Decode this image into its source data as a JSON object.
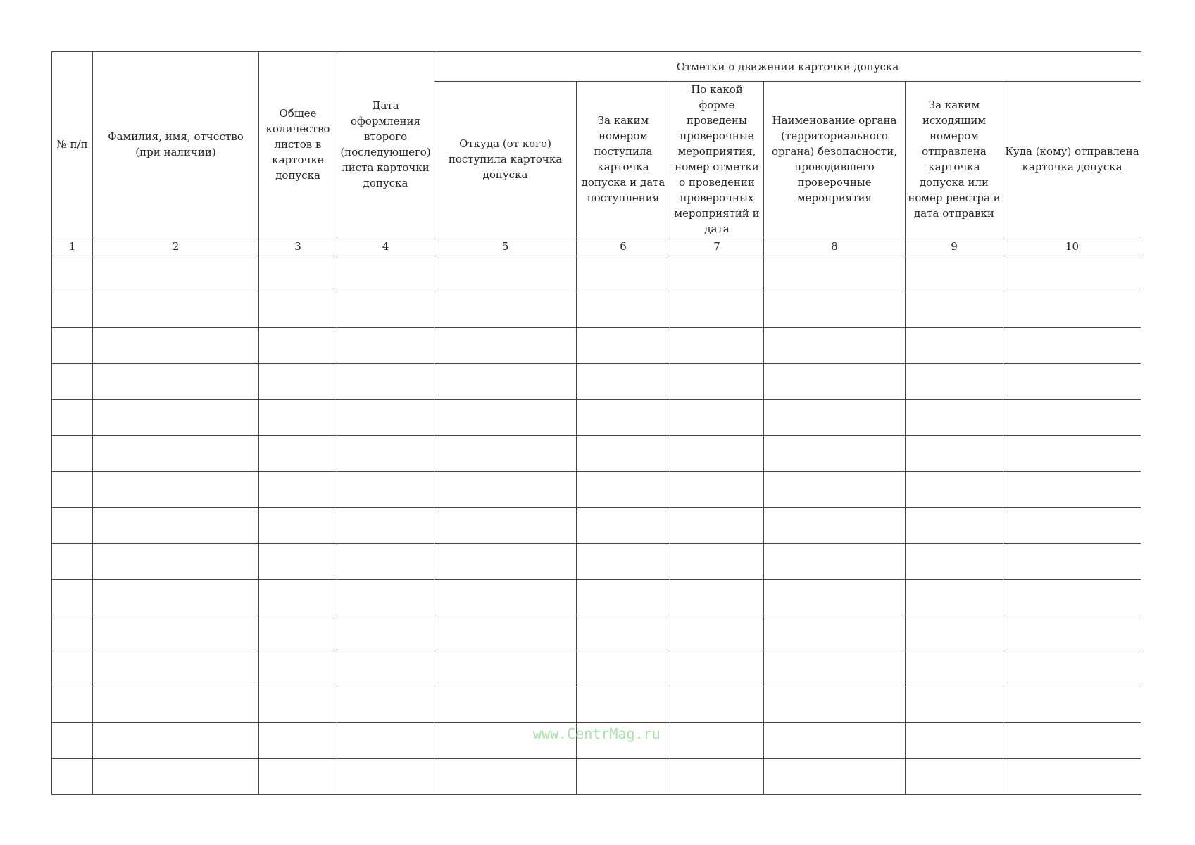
{
  "group_header": "Отметки о движении карточки допуска",
  "columns": [
    "№ п/п",
    "Фамилия, имя, отчество (при наличии)",
    "Общее количество листов в карточке допуска",
    "Дата оформления второго (последующего) листа карточки допуска",
    "Откуда (от кого) поступила карточка допуска",
    "За каким номером поступила карточка допуска и дата поступления",
    "По какой форме проведены проверочные мероприятия, номер отметки о проведении проверочных мероприятий и дата",
    "Наименование органа (территориального органа) безопасности, проводившего проверочные мероприятия",
    "За каким исходящим номером отправлена карточка допуска или номер реестра и дата отправки",
    "Куда (кому) отправлена карточка допуска"
  ],
  "column_numbers": [
    "1",
    "2",
    "3",
    "4",
    "5",
    "6",
    "7",
    "8",
    "9",
    "10"
  ],
  "empty_rows": 15,
  "watermark": "www.CentrMag.ru"
}
